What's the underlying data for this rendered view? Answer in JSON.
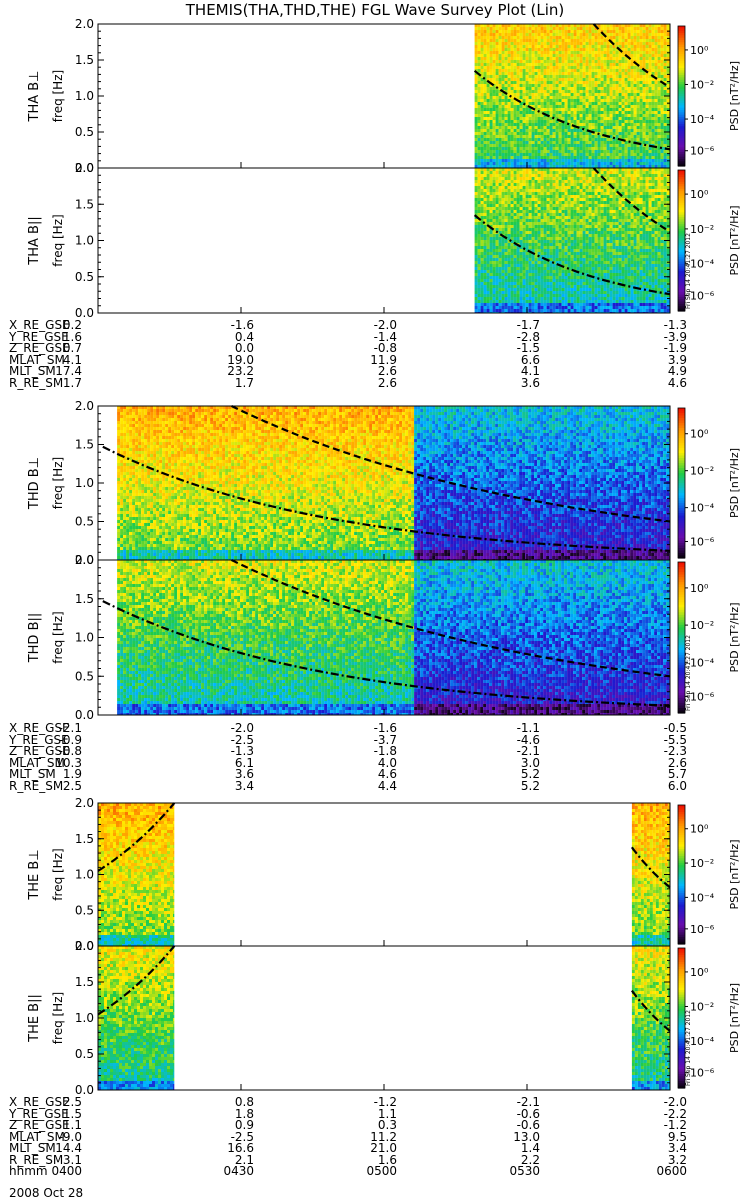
{
  "title": "THEMIS(THA,THD,THE) FGL Wave Survey Plot (Lin)",
  "date_label": "2008 Oct 28",
  "colorbar": {
    "label": "PSD [nT²/Hz]",
    "tick_labels": [
      "10⁰",
      "10⁻²",
      "10⁻⁴",
      "10⁻⁶"
    ],
    "stamp": "Fri Sep 14 20:41:27 2012",
    "colors": [
      "#000000",
      "#6a0dad",
      "#1b1bd0",
      "#00b7ff",
      "#22cc44",
      "#ffee00",
      "#ff9900",
      "#ee1100"
    ]
  },
  "chart_data": [
    {
      "type": "heatmap",
      "id": "tha-perp",
      "ylabel": "THA B⊥",
      "ylabel2": "freq [Hz]",
      "yticks": [
        "2.0",
        "1.5",
        "1.0",
        "0.5",
        "0.0"
      ],
      "ylim": [
        0,
        2.0
      ],
      "xlim": [
        "0400",
        "0600"
      ],
      "data_intervals": [
        [
          "0519",
          "0600"
        ]
      ],
      "base_level": 0.55,
      "after_level": 0.55,
      "curves": [
        {
          "style": "dash-dot",
          "start": "0519",
          "end": "0600",
          "from": 1.35,
          "to": 0.26
        },
        {
          "style": "dash",
          "start": "0544",
          "end": "0600",
          "from": 2.0,
          "to": 1.12
        }
      ]
    },
    {
      "type": "heatmap",
      "id": "tha-par",
      "ylabel": "THA B||",
      "ylabel2": "freq [Hz]",
      "yticks": [
        "2.0",
        "1.5",
        "1.0",
        "0.5",
        "0.0"
      ],
      "ylim": [
        0,
        2.0
      ],
      "xlim": [
        "0400",
        "0600"
      ],
      "data_intervals": [
        [
          "0519",
          "0600"
        ]
      ],
      "base_level": 0.47,
      "after_level": 0.47,
      "curves": [
        {
          "style": "dash-dot",
          "start": "0519",
          "end": "0600",
          "from": 1.35,
          "to": 0.26
        },
        {
          "style": "dash",
          "start": "0544",
          "end": "0600",
          "from": 2.0,
          "to": 1.12
        }
      ]
    },
    {
      "type": "heatmap",
      "id": "thd-perp",
      "ylabel": "THD B⊥",
      "ylabel2": "freq [Hz]",
      "yticks": [
        "2.0",
        "1.5",
        "1.0",
        "0.5",
        "0.0"
      ],
      "ylim": [
        0,
        2.0
      ],
      "xlim": [
        "0400",
        "0600"
      ],
      "data_intervals": [
        [
          "0404",
          "0600"
        ]
      ],
      "base_level": 0.6,
      "split": "0506",
      "after_level": 0.24,
      "curves": [
        {
          "style": "dash-dot",
          "start": "0401",
          "end": "0600",
          "from": 1.47,
          "to": 0.12
        },
        {
          "style": "dash",
          "start": "0428",
          "end": "0600",
          "from": 2.0,
          "to": 0.5
        }
      ]
    },
    {
      "type": "heatmap",
      "id": "thd-par",
      "ylabel": "THD B||",
      "ylabel2": "freq [Hz]",
      "yticks": [
        "2.0",
        "1.5",
        "1.0",
        "0.5",
        "0.0"
      ],
      "ylim": [
        0,
        2.0
      ],
      "xlim": [
        "0400",
        "0600"
      ],
      "data_intervals": [
        [
          "0404",
          "0600"
        ]
      ],
      "base_level": 0.47,
      "split": "0506",
      "after_level": 0.24,
      "curves": [
        {
          "style": "dash-dot",
          "start": "0401",
          "end": "0600",
          "from": 1.47,
          "to": 0.12
        },
        {
          "style": "dash",
          "start": "0428",
          "end": "0600",
          "from": 2.0,
          "to": 0.5
        }
      ]
    },
    {
      "type": "heatmap",
      "id": "the-perp",
      "ylabel": "THE B⊥",
      "ylabel2": "freq [Hz]",
      "yticks": [
        "2.0",
        "1.5",
        "1.0",
        "0.5",
        "0.0"
      ],
      "ylim": [
        0,
        2.0
      ],
      "xlim": [
        "0400",
        "0600"
      ],
      "data_intervals": [
        [
          "0400",
          "0416"
        ],
        [
          "0552",
          "0600"
        ]
      ],
      "base_level": 0.6,
      "after_level": 0.6,
      "curves": [
        {
          "style": "dash-dot",
          "start": "0400",
          "end": "0416",
          "from": 1.05,
          "to": 2.0
        },
        {
          "style": "dash-dot",
          "start": "0552",
          "end": "0600",
          "from": 1.38,
          "to": 0.82
        }
      ]
    },
    {
      "type": "heatmap",
      "id": "the-par",
      "ylabel": "THE B||",
      "ylabel2": "freq [Hz]",
      "yticks": [
        "2.0",
        "1.5",
        "1.0",
        "0.5",
        "0.0"
      ],
      "ylim": [
        0,
        2.0
      ],
      "xlim": [
        "0400",
        "0600"
      ],
      "data_intervals": [
        [
          "0400",
          "0416"
        ],
        [
          "0552",
          "0600"
        ]
      ],
      "base_level": 0.5,
      "after_level": 0.5,
      "curves": [
        {
          "style": "dash-dot",
          "start": "0400",
          "end": "0416",
          "from": 1.05,
          "to": 2.0
        },
        {
          "style": "dash-dot",
          "start": "0552",
          "end": "0600",
          "from": 1.38,
          "to": 0.82
        }
      ]
    }
  ],
  "ephemeris": [
    {
      "probe": "THA",
      "rows": [
        {
          "label": "X_RE_GSE",
          "values": [
            "0.2",
            "-1.6",
            "-2.0",
            "-1.7",
            "-1.3"
          ]
        },
        {
          "label": "Y_RE_GSE",
          "values": [
            "1.6",
            "0.4",
            "-1.4",
            "-2.8",
            "-3.9"
          ]
        },
        {
          "label": "Z_RE_GSE",
          "values": [
            "0.7",
            "0.0",
            "-0.8",
            "-1.5",
            "-1.9"
          ]
        },
        {
          "label": "MLAT_SM",
          "values": [
            "4.1",
            "19.0",
            "11.9",
            "6.6",
            "3.9"
          ]
        },
        {
          "label": "MLT_SM",
          "values": [
            "17.4",
            "23.2",
            "2.6",
            "4.1",
            "4.9"
          ]
        },
        {
          "label": "R_RE_SM",
          "values": [
            "1.7",
            "1.7",
            "2.6",
            "3.6",
            "4.6"
          ]
        }
      ]
    },
    {
      "probe": "THD",
      "rows": [
        {
          "label": "X_RE_GSE",
          "values": [
            "-2.1",
            "-2.0",
            "-1.6",
            "-1.1",
            "-0.5"
          ]
        },
        {
          "label": "Y_RE_GSE",
          "values": [
            "-0.9",
            "-2.5",
            "-3.7",
            "-4.6",
            "-5.5"
          ]
        },
        {
          "label": "Z_RE_GSE",
          "values": [
            "-0.8",
            "-1.3",
            "-1.8",
            "-2.1",
            "-2.3"
          ]
        },
        {
          "label": "MLAT_SM",
          "values": [
            "10.3",
            "6.1",
            "4.0",
            "3.0",
            "2.6"
          ]
        },
        {
          "label": "MLT_SM",
          "values": [
            "1.9",
            "3.6",
            "4.6",
            "5.2",
            "5.7"
          ]
        },
        {
          "label": "R_RE_SM",
          "values": [
            "2.5",
            "3.4",
            "4.4",
            "5.2",
            "6.0"
          ]
        }
      ]
    },
    {
      "probe": "THE",
      "rows": [
        {
          "label": "X_RE_GSE",
          "values": [
            "2.5",
            "0.8",
            "-1.2",
            "-2.1",
            "-2.0"
          ]
        },
        {
          "label": "Y_RE_GSE",
          "values": [
            "1.5",
            "1.8",
            "1.1",
            "-0.6",
            "-2.2"
          ]
        },
        {
          "label": "Z_RE_GSE",
          "values": [
            "1.1",
            "0.9",
            "0.3",
            "-0.6",
            "-1.2"
          ]
        },
        {
          "label": "MLAT_SM",
          "values": [
            "-9.0",
            "-2.5",
            "11.2",
            "13.0",
            "9.5"
          ]
        },
        {
          "label": "MLT_SM",
          "values": [
            "14.4",
            "16.6",
            "21.0",
            "1.4",
            "3.4"
          ]
        },
        {
          "label": "R_RE_SM",
          "values": [
            "3.1",
            "2.1",
            "1.6",
            "2.2",
            "3.2"
          ]
        },
        {
          "label": "hhmm",
          "values": [
            "0400",
            "0430",
            "0500",
            "0530",
            "0600"
          ]
        }
      ]
    }
  ]
}
